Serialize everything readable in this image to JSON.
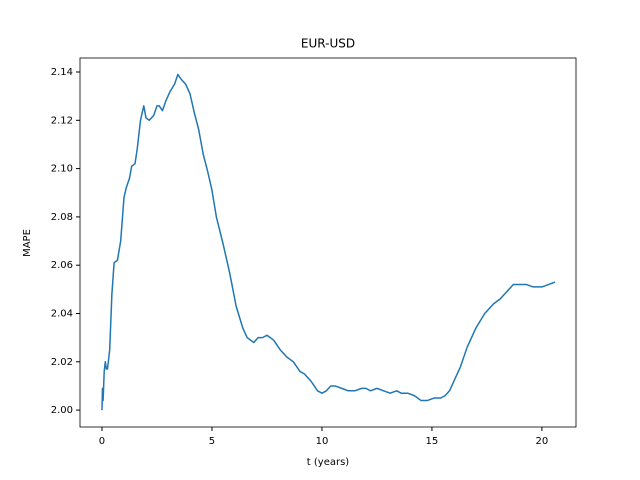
{
  "chart_data": {
    "type": "line",
    "title": "EUR-USD",
    "x_label": "t (years)",
    "y_label": "MAPE",
    "x": [
      0,
      0.02,
      0.05,
      0.1,
      0.15,
      0.2,
      0.25,
      0.35,
      0.45,
      0.55,
      0.7,
      0.85,
      1.0,
      1.1,
      1.25,
      1.35,
      1.5,
      1.6,
      1.75,
      1.9,
      2.0,
      2.15,
      2.35,
      2.5,
      2.6,
      2.75,
      2.9,
      3.1,
      3.3,
      3.45,
      3.6,
      3.8,
      4.0,
      4.2,
      4.4,
      4.6,
      4.8,
      5.0,
      5.2,
      5.5,
      5.8,
      6.1,
      6.4,
      6.6,
      6.9,
      7.1,
      7.3,
      7.5,
      7.8,
      8.1,
      8.4,
      8.7,
      9.0,
      9.2,
      9.5,
      9.8,
      10.0,
      10.2,
      10.4,
      10.6,
      10.9,
      11.2,
      11.5,
      11.8,
      12.0,
      12.2,
      12.5,
      12.8,
      13.1,
      13.4,
      13.6,
      13.9,
      14.2,
      14.5,
      14.8,
      15.1,
      15.4,
      15.6,
      15.8,
      16.0,
      16.3,
      16.6,
      17.0,
      17.4,
      17.8,
      18.1,
      18.4,
      18.7,
      19.0,
      19.3,
      19.6,
      20.0,
      20.3,
      20.6
    ],
    "series": [
      {
        "name": "MAPE",
        "color": "#1f77b4",
        "values": [
          2.0,
          2.009,
          2.004,
          2.016,
          2.02,
          2.017,
          2.017,
          2.025,
          2.048,
          2.061,
          2.062,
          2.07,
          2.088,
          2.092,
          2.096,
          2.101,
          2.102,
          2.108,
          2.12,
          2.126,
          2.121,
          2.12,
          2.122,
          2.126,
          2.126,
          2.124,
          2.128,
          2.132,
          2.135,
          2.139,
          2.137,
          2.135,
          2.131,
          2.123,
          2.116,
          2.106,
          2.099,
          2.091,
          2.08,
          2.069,
          2.057,
          2.043,
          2.034,
          2.03,
          2.028,
          2.03,
          2.03,
          2.031,
          2.029,
          2.025,
          2.022,
          2.02,
          2.016,
          2.015,
          2.012,
          2.008,
          2.007,
          2.008,
          2.01,
          2.01,
          2.009,
          2.008,
          2.008,
          2.009,
          2.009,
          2.008,
          2.009,
          2.008,
          2.007,
          2.008,
          2.007,
          2.007,
          2.006,
          2.004,
          2.004,
          2.005,
          2.005,
          2.006,
          2.008,
          2.012,
          2.018,
          2.026,
          2.034,
          2.04,
          2.044,
          2.046,
          2.049,
          2.052,
          2.052,
          2.052,
          2.051,
          2.051,
          2.052,
          2.053
        ]
      }
    ],
    "xlim": [
      -1.0,
      21.55
    ],
    "ylim": [
      1.993,
      2.1458
    ],
    "xticks": [
      0,
      5,
      10,
      15,
      20
    ],
    "yticks": [
      {
        "value": 2.0,
        "label": "2.00"
      },
      2.02,
      2.04,
      2.06,
      2.08,
      {
        "value": 2.1,
        "label": "2.10"
      },
      2.12,
      2.14
    ],
    "grid": false
  }
}
